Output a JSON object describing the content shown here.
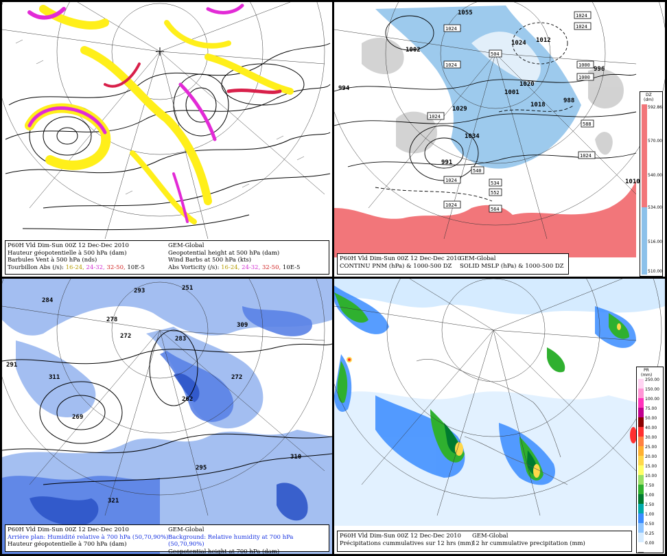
{
  "panels": [
    {
      "id": "p1",
      "caption_left": [
        "P60H Vld Dim-Sun 00Z 12 Dec-Dec 2010",
        "Hauteur géopotentielle à 500 hPa (dam)",
        "Barbules Vent à 500 hPa (nds)"
      ],
      "vort_fr_label": "Tourbillon Abs (/s):",
      "caption_right": [
        "GEM-Global",
        "Geopotential height at 500 hPa (dam)",
        "Wind Barbs at 500 hPa  (kts)"
      ],
      "vort_en_label": "Abs Vorticity (/s):",
      "vort_classes": [
        "16-24,",
        "24-32,",
        "32-50,",
        "10E-5"
      ],
      "colors": {
        "yellow": "#ffef1a",
        "magenta": "#e22ad6",
        "red": "#d8204a"
      }
    },
    {
      "id": "p2",
      "caption_left": [
        "P60H Vld Dim-Sun 00Z 12 Dec-Dec 2010",
        "CONTINU PNM  (hPa) & 1000-500 DZ"
      ],
      "caption_right": [
        "GEM-Global",
        "SOLID  MSLP (hPa) & 1000-500 DZ"
      ],
      "legend_title": [
        "DZ",
        "(dm)"
      ],
      "legend_ticks": [
        "592.86",
        "570.00",
        "540.00",
        "534.00",
        "516.00",
        "510.00"
      ],
      "labels_H": [
        "1055",
        "1024",
        "1029",
        "1020",
        "1034",
        "1010"
      ],
      "labels_L": [
        "994",
        "1002",
        "991",
        "996",
        "988",
        "1012",
        "1001",
        "1018"
      ],
      "boxes": [
        "1024",
        "1024",
        "1024",
        "1024",
        "1024",
        "1024",
        "1024",
        "1000",
        "1000",
        "1024",
        "504",
        "534",
        "564",
        "552",
        "540",
        "588"
      ],
      "colors": {
        "warm": "#f2767a",
        "cold": "#8cc1ea",
        "shade": "#c8c8c8"
      }
    },
    {
      "id": "p3",
      "caption_left_1": "P60H Vld Dim-Sun 00Z 12 Dec-Dec 2010",
      "caption_left_2": "Arrière plan: Humidité relative à 700 hPa (50,70,90%)",
      "caption_left_3": "Hauteur géopotentielle à 700 hPa (dam)",
      "caption_right_1": "GEM-Global",
      "caption_right_2": "Background: Relative humidity at 700 hPa (50,70,90%)",
      "caption_right_3": "Geopotential height at 700 hPa (dam)",
      "labels_H": [
        "311",
        "321"
      ],
      "labels_L": [
        "284",
        "293",
        "291",
        "278",
        "272",
        "283",
        "251",
        "309",
        "269",
        "262",
        "272",
        "295",
        "310"
      ],
      "colors": {
        "rh50": "#9ab8f0",
        "rh70": "#5a82e6",
        "rh90": "#2d55c8"
      }
    },
    {
      "id": "p4",
      "caption_left": [
        "P60H Vld Dim-Sun 00Z 12 Dec-Dec 2010",
        "Précipitations cummulatives sur 12 hrs (mm)"
      ],
      "caption_right": [
        "GEM-Global",
        "12 hr cummulative precipitation        (mm)"
      ],
      "legend_title": [
        "PR",
        "(mm)"
      ],
      "legend_ticks": [
        "250.00",
        "150.00",
        "100.00",
        "75.00",
        "50.00",
        "40.00",
        "30.00",
        "25.00",
        "20.00",
        "15.00",
        "10.00",
        "7.50",
        "5.00",
        "2.50",
        "1.00",
        "0.50",
        "0.25",
        "0.00"
      ],
      "legend_colors": [
        "#ffd4f2",
        "#ff96d6",
        "#ff33bb",
        "#c0008e",
        "#8a0000",
        "#ff3030",
        "#ff8040",
        "#ffb030",
        "#ffd84a",
        "#ffff66",
        "#99e066",
        "#2fb02f",
        "#007a2f",
        "#00aaaa",
        "#3a8cff",
        "#8ec5ff",
        "#d5ebff",
        "#ffffff"
      ]
    }
  ]
}
